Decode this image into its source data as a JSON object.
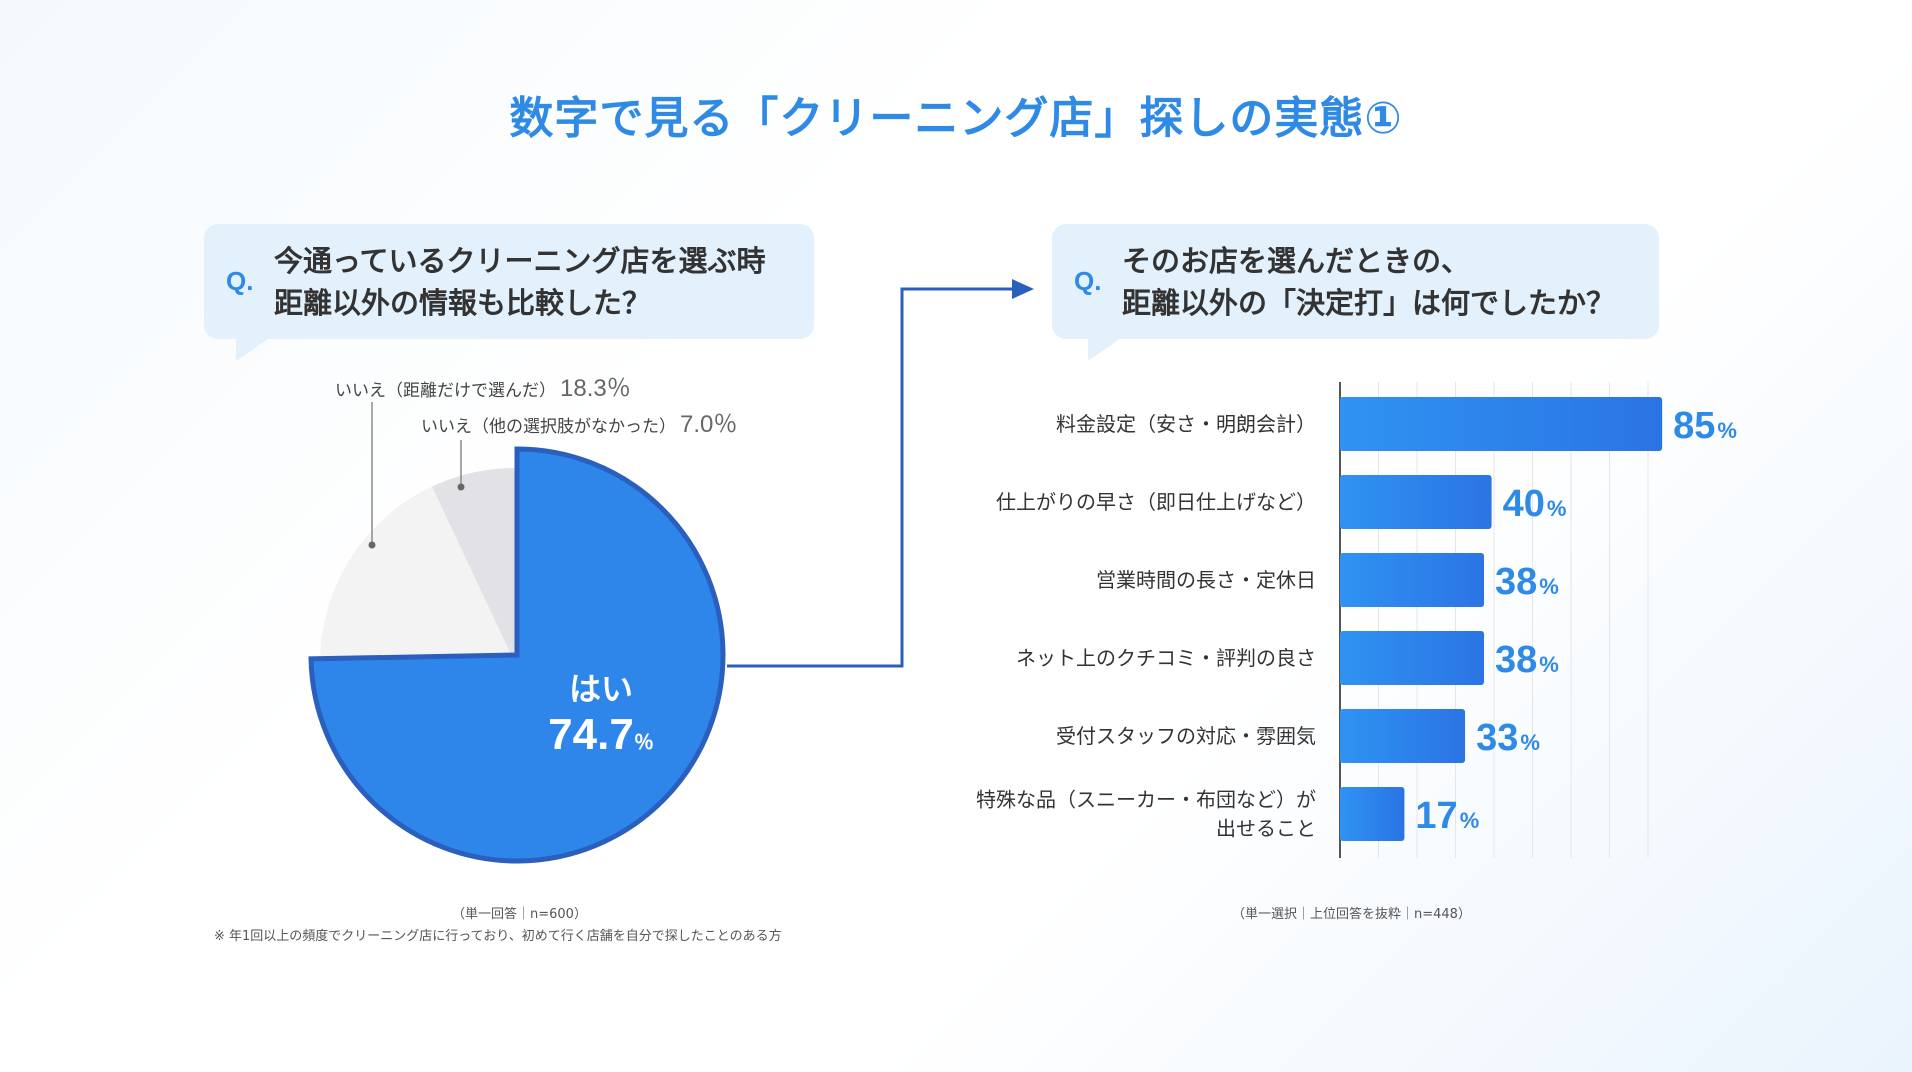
{
  "title": "数字で見る「クリーニング店」探しの実態①",
  "colors": {
    "accent": "#2f8ae6",
    "pie_yes": "#2f86ea",
    "pie_yes_stroke": "#2b5fbd",
    "pie_no1": "#f3f3f4",
    "pie_no2": "#e2e2e6",
    "bar": "#2f86ea",
    "connector": "#2b5fbd"
  },
  "q1": {
    "mark": "Q.",
    "line1": "今通っているクリーニング店を選ぶ時",
    "line2": "距離以外の情報も比較した？"
  },
  "q2": {
    "mark": "Q.",
    "line1": "そのお店を選んだときの、",
    "line2": "距離以外の「決定打」は何でしたか？"
  },
  "pie_labels": {
    "no1_text": "いいえ（距離だけで選んだ）",
    "no1_pct": "18.3％",
    "no2_text": "いいえ（他の選択肢がなかった）",
    "no2_pct": "7.0％",
    "yes_text": "はい",
    "yes_value": "74.7",
    "yes_unit": "％"
  },
  "notes": {
    "pie_sample": "（単一回答｜n=600）",
    "footnote": "※ 年1回以上の頻度でクリーニング店に行っており、初めて行く店舗を自分で探したことのある方",
    "bar_sample": "（単一選択｜上位回答を抜粋｜n=448）"
  },
  "chart_data": [
    {
      "type": "pie",
      "title": "今通っているクリーニング店を選ぶ時 距離以外の情報も比較した？",
      "slices": [
        {
          "label": "はい",
          "value": 74.7
        },
        {
          "label": "いいえ（距離だけで選んだ）",
          "value": 18.3
        },
        {
          "label": "いいえ（他の選択肢がなかった）",
          "value": 7.0
        }
      ]
    },
    {
      "type": "bar",
      "orientation": "horizontal",
      "title": "そのお店を選んだときの、距離以外の「決定打」は何でしたか？",
      "categories": [
        "料金設定（安さ・明朗会計）",
        "仕上がりの早さ（即日仕上げなど）",
        "営業時間の長さ・定休日",
        "ネット上のクチコミ・評判の良さ",
        "受付スタッフの対応・雰囲気",
        "特殊な品（スニーカー・布団など）が出せること"
      ],
      "category_lines": [
        [
          "料金設定（安さ・明朗会計）"
        ],
        [
          "仕上がりの早さ（即日仕上げなど）"
        ],
        [
          "営業時間の長さ・定休日"
        ],
        [
          "ネット上のクチコミ・評判の良さ"
        ],
        [
          "受付スタッフの対応・雰囲気"
        ],
        [
          "特殊な品（スニーカー・布団など）が",
          "出せること"
        ]
      ],
      "values": [
        85,
        40,
        38,
        38,
        33,
        17
      ],
      "unit": "%",
      "xlim": [
        0,
        100
      ],
      "grid": true
    }
  ]
}
